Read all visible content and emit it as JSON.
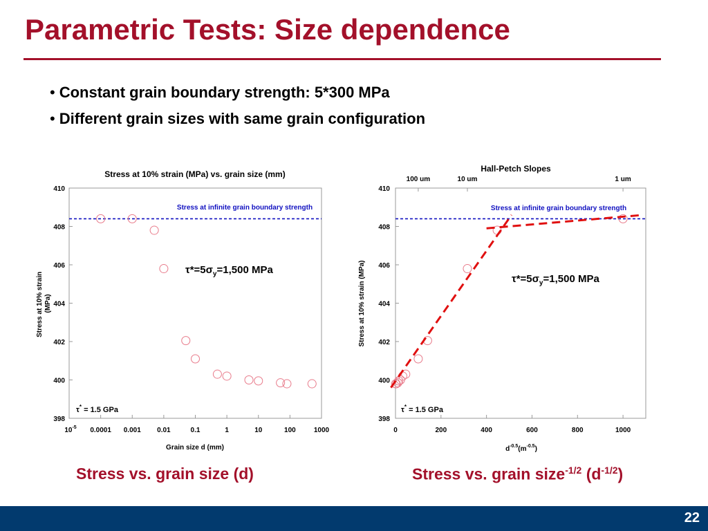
{
  "slide": {
    "title": "Parametric Tests: Size dependence",
    "bullets": [
      "Constant grain boundary strength: 5*300 MPa",
      "Different grain sizes with same grain configuration"
    ],
    "page_number": "22"
  },
  "captions": {
    "left": "Stress vs. grain size (d)",
    "right_main": "Stress vs. grain size",
    "right_sup1": "-1/2",
    "right_paren": " (d",
    "right_sup2": "-1/2",
    "right_close": ")"
  },
  "colors": {
    "title": "#a3102a",
    "footer": "#023a6e",
    "reference_line": "#1010c0",
    "markers": "#e87a8a",
    "fit_lines": "#e01010"
  },
  "chart_data": [
    {
      "type": "scatter",
      "title": "Stress at 10% strain (MPa) vs. grain size (mm)",
      "xlabel": "Grain size d (mm)",
      "ylabel": "Stress at 10% strain (MPa)",
      "x_scale": "log",
      "xlim": [
        1e-05,
        1000
      ],
      "ylim": [
        398,
        410
      ],
      "x_ticks": [
        {
          "v": 1e-05,
          "base": "10",
          "exp": "-5"
        },
        {
          "v": 0.0001,
          "label": "0.0001"
        },
        {
          "v": 0.001,
          "label": "0.001"
        },
        {
          "v": 0.01,
          "label": "0.01"
        },
        {
          "v": 0.1,
          "label": "0.1"
        },
        {
          "v": 1,
          "label": "1"
        },
        {
          "v": 10,
          "label": "10"
        },
        {
          "v": 100,
          "label": "100"
        },
        {
          "v": 1000,
          "label": "1000"
        }
      ],
      "y_ticks": [
        "398",
        "400",
        "402",
        "404",
        "406",
        "408",
        "410"
      ],
      "points": [
        {
          "x": 0.0001,
          "y": 408.4
        },
        {
          "x": 0.001,
          "y": 408.4
        },
        {
          "x": 0.005,
          "y": 407.8
        },
        {
          "x": 0.01,
          "y": 405.8
        },
        {
          "x": 0.05,
          "y": 402.05
        },
        {
          "x": 0.1,
          "y": 401.1
        },
        {
          "x": 0.5,
          "y": 400.3
        },
        {
          "x": 1,
          "y": 400.2
        },
        {
          "x": 5,
          "y": 400.0
        },
        {
          "x": 10,
          "y": 399.95
        },
        {
          "x": 50,
          "y": 399.85
        },
        {
          "x": 80,
          "y": 399.8
        },
        {
          "x": 500,
          "y": 399.8
        }
      ],
      "reference_line": {
        "y": 408.4,
        "label": "Stress at infinite grain boundary strength"
      },
      "annotation": {
        "tau": "τ",
        "mid": "*=5",
        "sigma": "σ",
        "sub": "y",
        "rest": "=1,500 MPa"
      },
      "corner_note": {
        "tau": "τ",
        "sup": "*",
        "rest": " = 1.5 GPa"
      },
      "grid": false
    },
    {
      "type": "scatter",
      "title": "Hall-Petch Slopes",
      "xlabel_base": "d",
      "xlabel_sup1": "-0.5",
      "xlabel_mid": "(m",
      "xlabel_sup2": "-0.5",
      "xlabel_end": ")",
      "ylabel": "Stress at 10% strain (MPa)",
      "xlim": [
        0,
        1100
      ],
      "ylim": [
        398,
        410
      ],
      "x_ticks": [
        "0",
        "200",
        "400",
        "600",
        "800",
        "1000"
      ],
      "y_ticks": [
        "398",
        "400",
        "402",
        "404",
        "406",
        "408",
        "410"
      ],
      "top_labels": [
        {
          "x": 100,
          "label": "100 um"
        },
        {
          "x": 316,
          "label": "10 um"
        },
        {
          "x": 1000,
          "label": "1 um"
        }
      ],
      "points": [
        {
          "x": 1,
          "y": 399.8
        },
        {
          "x": 3,
          "y": 399.8
        },
        {
          "x": 10,
          "y": 399.85
        },
        {
          "x": 14,
          "y": 399.95
        },
        {
          "x": 22,
          "y": 400.0
        },
        {
          "x": 32,
          "y": 400.2
        },
        {
          "x": 45,
          "y": 400.3
        },
        {
          "x": 100,
          "y": 401.1
        },
        {
          "x": 141,
          "y": 402.05
        },
        {
          "x": 316,
          "y": 405.8
        },
        {
          "x": 447,
          "y": 407.8
        },
        {
          "x": 1000,
          "y": 408.4
        }
      ],
      "fit_lines": [
        {
          "x": [
            -20,
            510
          ],
          "y": [
            399.6,
            408.6
          ]
        },
        {
          "x": [
            400,
            1090
          ],
          "y": [
            407.9,
            408.6
          ]
        }
      ],
      "reference_line": {
        "y": 408.4,
        "label": "Stress at infinite grain boundary strength"
      },
      "annotation": {
        "tau": "τ",
        "mid": "*=5",
        "sigma": "σ",
        "sub": "y",
        "rest": "=1,500 MPa"
      },
      "corner_note": {
        "tau": "τ",
        "sup": "*",
        "rest": " = 1.5 GPa"
      },
      "grid": false
    }
  ]
}
